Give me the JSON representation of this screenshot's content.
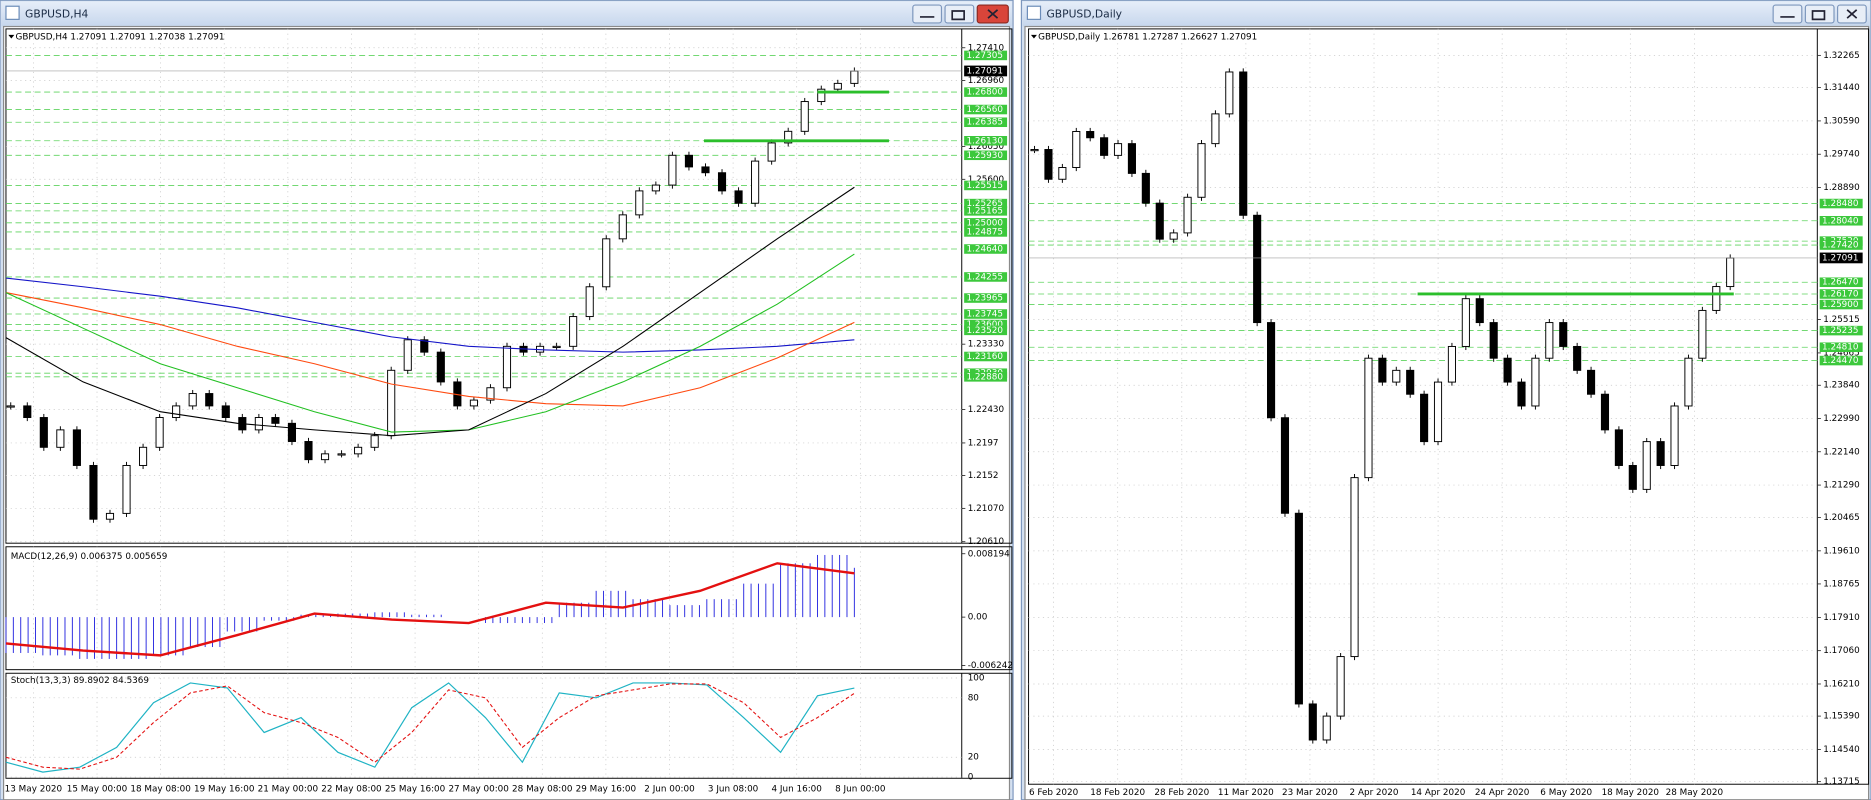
{
  "windows": [
    {
      "title": "GBPUSD,H4",
      "header": "GBPUSD,H4  1.27091 1.27091 1.27038 1.27091",
      "ylim": [
        1.2059,
        1.2767
      ],
      "price_ticks": [
        {
          "value": 1.2741,
          "label": "1.27410"
        },
        {
          "value": 1.2696,
          "label": "1.26960"
        },
        {
          "value": 1.2605,
          "label": "1.26050"
        },
        {
          "value": 1.256,
          "label": "1.25600"
        },
        {
          "value": 1.2333,
          "label": "1.23330"
        },
        {
          "value": 1.2243,
          "label": "1.22430"
        },
        1.2197,
        1.2152,
        {
          "value": 1.2107,
          "label": "1.21070"
        },
        {
          "value": 1.2061,
          "label": "1.20610"
        }
      ],
      "level_labels": [
        1.27305,
        {
          "value": 1.268,
          "label": "1.26800"
        },
        {
          "value": 1.2656,
          "label": "1.26560"
        },
        1.26385,
        {
          "value": 1.2613,
          "label": "1.26130"
        },
        {
          "value": 1.2593,
          "label": "1.25930"
        },
        1.25515,
        1.25265,
        1.25165,
        {
          "value": 1.25,
          "label": "1.25000"
        },
        1.24875,
        {
          "value": 1.2464,
          "label": "1.24640"
        },
        1.24255,
        1.23965,
        1.23745,
        {
          "value": 1.236,
          "label": "1.23600"
        },
        {
          "value": 1.2352,
          "label": "1.23520"
        },
        {
          "value": 1.2316,
          "label": "1.23160"
        },
        {
          "value": 1.2293,
          "label": "1.22930"
        },
        {
          "value": 1.2288,
          "label": "1.22880"
        }
      ],
      "current_price": 1.27091,
      "trend_lines": [
        1.268,
        1.2613
      ],
      "closes": [
        1.2248,
        1.2232,
        1.2191,
        1.2215,
        1.2166,
        1.2092,
        1.21,
        1.2166,
        1.2191,
        1.2232,
        1.2248,
        1.2265,
        1.2248,
        1.2232,
        1.2215,
        1.2232,
        1.2224,
        1.2199,
        1.2174,
        1.2182,
        1.2182,
        1.2191,
        1.2207,
        1.2297,
        1.2339,
        1.2322,
        1.2281,
        1.2248,
        1.2256,
        1.2273,
        1.233,
        1.2322,
        1.233,
        1.233,
        1.2371,
        1.2412,
        1.2478,
        1.2511,
        1.2544,
        1.2552,
        1.2593,
        1.2577,
        1.2569,
        1.2544,
        1.2527,
        1.2585,
        1.261,
        1.2626,
        1.2667,
        1.2684,
        1.2692,
        1.2709
      ],
      "moving_averages": [
        {
          "color": "#1414c8",
          "values": [
            1.2424,
            1.2412,
            1.2399,
            1.2383,
            1.2363,
            1.2343,
            1.233,
            1.2325,
            1.2322,
            1.2325,
            1.233,
            1.2339
          ]
        },
        {
          "color": "#ff4a10",
          "values": [
            1.2404,
            1.2383,
            1.236,
            1.233,
            1.2306,
            1.2278,
            1.2261,
            1.2251,
            1.2248,
            1.2273,
            1.2314,
            1.2363
          ]
        },
        {
          "color": "#22c022",
          "values": [
            1.2404,
            1.2355,
            1.2306,
            1.2273,
            1.224,
            1.2212,
            1.2215,
            1.224,
            1.2281,
            1.233,
            1.2388,
            1.2457
          ]
        },
        {
          "color": "#000000",
          "values": [
            1.2342,
            1.2281,
            1.224,
            1.2224,
            1.2215,
            1.2207,
            1.2215,
            1.2265,
            1.233,
            1.2404,
            1.2478,
            1.2549
          ]
        }
      ],
      "macd": {
        "label": "MACD(12,26,9) 0.006375 0.005659",
        "ylim": [
          -0.0068,
          0.0091
        ],
        "ticks": [
          0.008194,
          {
            "value": 0,
            "label": "0.00"
          },
          -0.006242
        ],
        "histogram": [
          -0.00464,
          -0.00495,
          -0.00541,
          -0.00541,
          -0.00495,
          -0.00387,
          -0.00186,
          -0.00046,
          0.00031,
          0.00046,
          0.00062,
          0.00031,
          0,
          -0.00077,
          -0.00077,
          0.00186,
          0.0034,
          0.00232,
          0.00155,
          0.00232,
          0.00433,
          0.00696,
          0.00804,
          0.00638
        ],
        "signal": [
          -0.0034,
          -0.00433,
          -0.00495,
          -0.00232,
          0.00046,
          -0.00031,
          -0.00077,
          0.00186,
          0.00124,
          0.0034,
          0.00696,
          0.00566
        ]
      },
      "stoch": {
        "label": "Stoch(13,3,3) 89.8902 84.5369",
        "ylim": [
          -1.2,
          104.8
        ],
        "ticks": [
          100,
          80,
          20,
          0
        ],
        "main": [
          15,
          5,
          10,
          30,
          75,
          95,
          90,
          45,
          60,
          25,
          10,
          70,
          95,
          60,
          15,
          85,
          80,
          95,
          95,
          93,
          60,
          25,
          82,
          89.89
        ],
        "signal": [
          20,
          10,
          8,
          20,
          55,
          85,
          92,
          65,
          55,
          40,
          15,
          45,
          88,
          80,
          30,
          60,
          82,
          88,
          94,
          94,
          75,
          40,
          60,
          84.54
        ]
      },
      "dates": [
        "13 May 2020",
        "15 May 00:00",
        "18 May 08:00",
        "19 May 16:00",
        "21 May 00:00",
        "22 May 08:00",
        "25 May 16:00",
        "27 May 00:00",
        "28 May 08:00",
        "29 May 16:00",
        "2 Jun 00:00",
        "3 Jun 08:00",
        "4 Jun 16:00",
        "8 Jun 00:00"
      ]
    },
    {
      "title": "GBPUSD,Daily",
      "header": "GBPUSD,Daily  1.26781 1.27287 1.26627 1.27091",
      "ylim": [
        1.1365,
        1.3294
      ],
      "price_ticks": [
        1.32265,
        {
          "value": 1.3144,
          "label": "1.31440"
        },
        {
          "value": 1.3059,
          "label": "1.30590"
        },
        {
          "value": 1.2974,
          "label": "1.29740"
        },
        {
          "value": 1.2889,
          "label": "1.28890"
        },
        1.25515,
        1.24665,
        {
          "value": 1.2384,
          "label": "1.23840"
        },
        {
          "value": 1.2299,
          "label": "1.22990"
        },
        {
          "value": 1.2214,
          "label": "1.22140"
        },
        {
          "value": 1.2129,
          "label": "1.21290"
        },
        1.20465,
        {
          "value": 1.1961,
          "label": "1.19610"
        },
        1.18765,
        {
          "value": 1.1791,
          "label": "1.17910"
        },
        {
          "value": 1.1706,
          "label": "1.17060"
        },
        {
          "value": 1.1621,
          "label": "1.16210"
        },
        {
          "value": 1.1539,
          "label": "1.15390"
        },
        {
          "value": 1.1454,
          "label": "1.14540"
        },
        1.13715
      ],
      "level_labels": [
        {
          "value": 1.2848,
          "label": "1.28480"
        },
        {
          "value": 1.2804,
          "label": "1.28040"
        },
        {
          "value": 1.2752,
          "label": "1.27520"
        },
        {
          "value": 1.2742,
          "label": "1.27420"
        },
        {
          "value": 1.2647,
          "label": "1.26470"
        },
        {
          "value": 1.2617,
          "label": "1.26170"
        },
        {
          "value": 1.259,
          "label": "1.25900"
        },
        1.25235,
        {
          "value": 1.2481,
          "label": "1.24810"
        },
        {
          "value": 1.2447,
          "label": "1.24470"
        }
      ],
      "current_price": 1.27091,
      "trend_lines": [
        1.2617
      ],
      "closes": [
        1.2986,
        1.291,
        1.294,
        1.3032,
        1.3016,
        1.2971,
        1.3001,
        1.2925,
        1.2849,
        1.2757,
        1.2773,
        1.2864,
        1.3001,
        1.3077,
        1.3184,
        1.2818,
        1.2544,
        1.2301,
        1.2057,
        1.157,
        1.1478,
        1.1539,
        1.1691,
        1.2148,
        1.2453,
        1.2392,
        1.2422,
        1.2361,
        1.224,
        1.2392,
        1.2483,
        1.2605,
        1.2544,
        1.2453,
        1.2392,
        1.2331,
        1.2453,
        1.2544,
        1.2483,
        1.2422,
        1.2361,
        1.227,
        1.2179,
        1.2118,
        1.224,
        1.2179,
        1.2331,
        1.2453,
        1.2575,
        1.2636,
        1.2709
      ],
      "dates": [
        "6 Feb 2020",
        "18 Feb 2020",
        "28 Feb 2020",
        "11 Mar 2020",
        "23 Mar 2020",
        "2 Apr 2020",
        "14 Apr 2020",
        "24 Apr 2020",
        "6 May 2020",
        "18 May 2020",
        "28 May 2020"
      ]
    }
  ]
}
